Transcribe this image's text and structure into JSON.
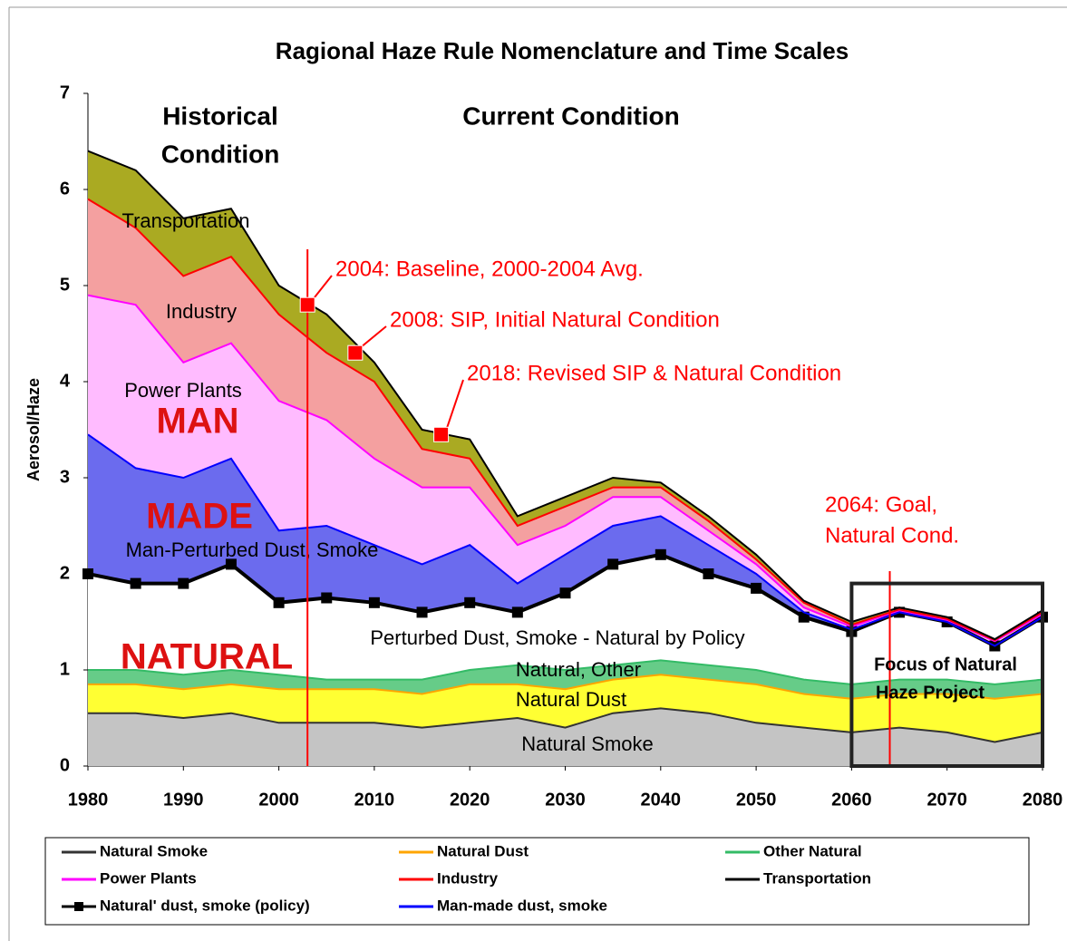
{
  "chart_data": {
    "type": "stacked_area",
    "title": "Ragional Haze Rule Nomenclature and Time Scales",
    "y_label": "Aerosol/Haze",
    "x": [
      1980,
      1985,
      1990,
      1995,
      2000,
      2005,
      2010,
      2015,
      2020,
      2025,
      2030,
      2035,
      2040,
      2045,
      2050,
      2055,
      2060,
      2065,
      2070,
      2075,
      2080
    ],
    "xlim": [
      1980,
      2080
    ],
    "xticks": [
      1980,
      1990,
      2000,
      2010,
      2020,
      2030,
      2040,
      2050,
      2060,
      2070,
      2080
    ],
    "ylim": [
      0,
      7
    ],
    "yticks": [
      0,
      1,
      2,
      3,
      4,
      5,
      6,
      7
    ],
    "series": [
      {
        "name": "Natural Smoke",
        "color": "#333333",
        "fill": "#c4c4c4",
        "values": [
          0.55,
          0.55,
          0.5,
          0.55,
          0.45,
          0.45,
          0.45,
          0.4,
          0.45,
          0.5,
          0.4,
          0.55,
          0.6,
          0.55,
          0.45,
          0.4,
          0.35,
          0.4,
          0.35,
          0.25,
          0.35
        ]
      },
      {
        "name": "Natural Dust",
        "color": "#ffa500",
        "fill": "#ffff33",
        "values": [
          0.3,
          0.3,
          0.3,
          0.3,
          0.35,
          0.35,
          0.35,
          0.35,
          0.4,
          0.35,
          0.4,
          0.35,
          0.35,
          0.35,
          0.4,
          0.35,
          0.35,
          0.35,
          0.4,
          0.45,
          0.4
        ]
      },
      {
        "name": "Other Natural",
        "color": "#33bb66",
        "fill": "#66cc88",
        "values": [
          0.15,
          0.15,
          0.15,
          0.15,
          0.15,
          0.1,
          0.1,
          0.15,
          0.15,
          0.2,
          0.2,
          0.15,
          0.15,
          0.15,
          0.15,
          0.15,
          0.15,
          0.15,
          0.15,
          0.15,
          0.15
        ]
      },
      {
        "name": "Natural' dust, smoke (policy)",
        "color": "#000000",
        "fill": "#ffffff",
        "markers": true,
        "values": [
          1.0,
          0.9,
          0.95,
          1.1,
          0.75,
          0.85,
          0.8,
          0.7,
          0.7,
          0.55,
          0.8,
          1.05,
          1.1,
          0.95,
          0.85,
          0.65,
          0.55,
          0.7,
          0.6,
          0.4,
          0.65
        ]
      },
      {
        "name": "Man-made dust, smoke",
        "color": "#0000ff",
        "fill": "#6b6bee",
        "values": [
          1.45,
          1.2,
          1.1,
          1.1,
          0.75,
          0.75,
          0.6,
          0.5,
          0.6,
          0.3,
          0.4,
          0.4,
          0.4,
          0.3,
          0.15,
          0.05,
          0.02,
          0,
          0,
          0,
          0
        ]
      },
      {
        "name": "Power Plants",
        "color": "#ff00ff",
        "fill": "#ffbbff",
        "values": [
          1.45,
          1.7,
          1.2,
          1.2,
          1.35,
          1.1,
          0.9,
          0.8,
          0.6,
          0.4,
          0.3,
          0.3,
          0.2,
          0.15,
          0.1,
          0.05,
          0.03,
          0.02,
          0.02,
          0.05,
          0.03
        ]
      },
      {
        "name": "Industry",
        "color": "#ff0000",
        "fill": "#f4a0a0",
        "values": [
          1.0,
          0.8,
          0.9,
          0.9,
          0.9,
          0.7,
          0.8,
          0.4,
          0.3,
          0.2,
          0.2,
          0.1,
          0.1,
          0.1,
          0.05,
          0.05,
          0.02,
          0.01,
          0.01,
          0.01,
          0.02
        ]
      },
      {
        "name": "Transportation",
        "color": "#000000",
        "fill": "#aaaa22",
        "values": [
          0.5,
          0.6,
          0.6,
          0.5,
          0.3,
          0.4,
          0.2,
          0.2,
          0.2,
          0.1,
          0.1,
          0.1,
          0.05,
          0.05,
          0.05,
          0.02,
          0.03,
          0.02,
          0.02,
          0.01,
          0.02
        ]
      }
    ],
    "area_labels": [
      "Historical",
      "Condition",
      "Current Condition",
      "Transportation",
      "Industry",
      "Power Plants",
      "MAN",
      "MADE",
      "Man-Perturbed Dust, Smoke",
      "NATURAL",
      "Perturbed Dust, Smoke - Natural by Policy",
      "Natural, Other",
      "Natural Dust",
      "Natural Smoke"
    ],
    "annotations": [
      {
        "lines": [
          "2004: Baseline, 2000-2004 Avg."
        ],
        "x": 2003,
        "y": 4.8
      },
      {
        "lines": [
          "2008: SIP, Initial Natural Condition"
        ],
        "x": 2008,
        "y": 4.3
      },
      {
        "lines": [
          "2018: Revised SIP & Natural Condition"
        ],
        "x": 2017,
        "y": 3.45
      },
      {
        "lines": [
          "2064: Goal,",
          "Natural Cond."
        ],
        "x": 2064
      }
    ],
    "focus_region": {
      "lines": [
        "Focus of Natural",
        "Haze Project"
      ],
      "x": [
        2060,
        2080
      ],
      "y": [
        0,
        1.9
      ]
    }
  }
}
